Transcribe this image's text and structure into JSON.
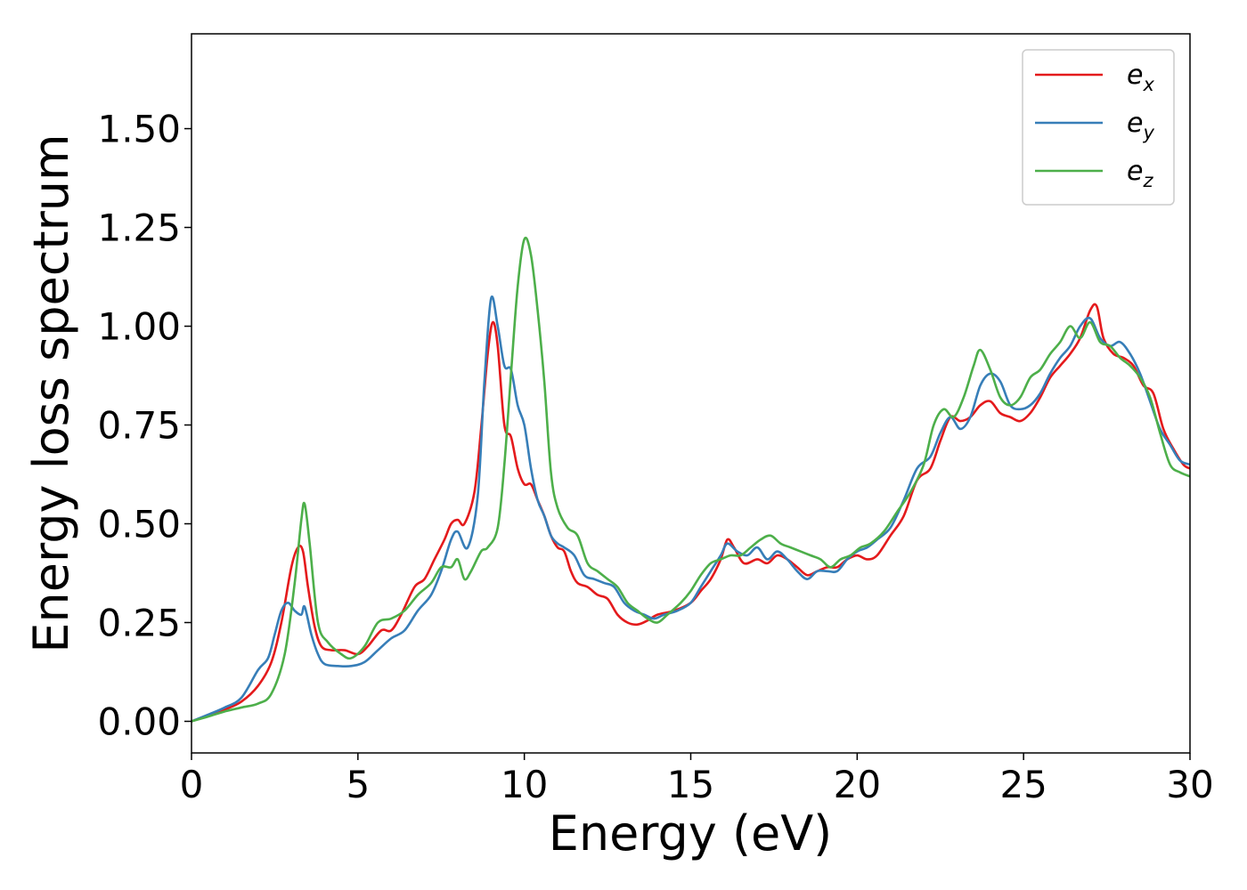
{
  "chart_data": {
    "type": "line",
    "title": "",
    "xlabel": "Energy (eV)",
    "ylabel": "Energy loss spectrum",
    "xlim": [
      0,
      30
    ],
    "ylim": [
      -0.08,
      1.74
    ],
    "x_ticks": [
      0,
      5,
      10,
      15,
      20,
      25,
      30
    ],
    "x_tick_labels": [
      "0",
      "5",
      "10",
      "15",
      "20",
      "25",
      "30"
    ],
    "y_ticks": [
      0.0,
      0.25,
      0.5,
      0.75,
      1.0,
      1.25,
      1.5
    ],
    "y_tick_labels": [
      "0.00",
      "0.25",
      "0.50",
      "0.75",
      "1.00",
      "1.25",
      "1.50"
    ],
    "grid": false,
    "legend_position": "top-right",
    "series": [
      {
        "name": "e_x",
        "legend_base": "e",
        "legend_sub": "x",
        "color": "#e41a1c",
        "points": [
          [
            0,
            0
          ],
          [
            0.5,
            0.015
          ],
          [
            1.0,
            0.03
          ],
          [
            1.5,
            0.05
          ],
          [
            2.0,
            0.09
          ],
          [
            2.4,
            0.15
          ],
          [
            2.7,
            0.25
          ],
          [
            3.0,
            0.39
          ],
          [
            3.2,
            0.44
          ],
          [
            3.35,
            0.43
          ],
          [
            3.5,
            0.34
          ],
          [
            3.7,
            0.24
          ],
          [
            3.9,
            0.19
          ],
          [
            4.2,
            0.18
          ],
          [
            4.6,
            0.18
          ],
          [
            5.0,
            0.17
          ],
          [
            5.3,
            0.19
          ],
          [
            5.7,
            0.23
          ],
          [
            6.0,
            0.23
          ],
          [
            6.3,
            0.27
          ],
          [
            6.7,
            0.34
          ],
          [
            7.0,
            0.36
          ],
          [
            7.3,
            0.41
          ],
          [
            7.6,
            0.46
          ],
          [
            7.8,
            0.5
          ],
          [
            8.0,
            0.51
          ],
          [
            8.2,
            0.5
          ],
          [
            8.5,
            0.58
          ],
          [
            8.7,
            0.74
          ],
          [
            8.9,
            0.93
          ],
          [
            9.05,
            1.01
          ],
          [
            9.2,
            0.95
          ],
          [
            9.4,
            0.75
          ],
          [
            9.6,
            0.72
          ],
          [
            9.8,
            0.64
          ],
          [
            10.0,
            0.6
          ],
          [
            10.2,
            0.6
          ],
          [
            10.4,
            0.56
          ],
          [
            10.6,
            0.52
          ],
          [
            10.8,
            0.47
          ],
          [
            11.0,
            0.44
          ],
          [
            11.2,
            0.43
          ],
          [
            11.4,
            0.38
          ],
          [
            11.6,
            0.35
          ],
          [
            11.9,
            0.34
          ],
          [
            12.2,
            0.32
          ],
          [
            12.5,
            0.31
          ],
          [
            12.8,
            0.27
          ],
          [
            13.1,
            0.25
          ],
          [
            13.4,
            0.245
          ],
          [
            13.7,
            0.255
          ],
          [
            14.0,
            0.27
          ],
          [
            14.5,
            0.28
          ],
          [
            15.0,
            0.3
          ],
          [
            15.3,
            0.33
          ],
          [
            15.6,
            0.36
          ],
          [
            15.9,
            0.41
          ],
          [
            16.1,
            0.46
          ],
          [
            16.3,
            0.44
          ],
          [
            16.6,
            0.4
          ],
          [
            17.0,
            0.41
          ],
          [
            17.3,
            0.4
          ],
          [
            17.6,
            0.42
          ],
          [
            17.9,
            0.41
          ],
          [
            18.2,
            0.39
          ],
          [
            18.5,
            0.37
          ],
          [
            18.8,
            0.38
          ],
          [
            19.1,
            0.39
          ],
          [
            19.4,
            0.39
          ],
          [
            19.7,
            0.41
          ],
          [
            20.0,
            0.42
          ],
          [
            20.3,
            0.41
          ],
          [
            20.6,
            0.42
          ],
          [
            21.0,
            0.47
          ],
          [
            21.4,
            0.52
          ],
          [
            21.8,
            0.61
          ],
          [
            22.2,
            0.64
          ],
          [
            22.5,
            0.71
          ],
          [
            22.8,
            0.77
          ],
          [
            23.1,
            0.76
          ],
          [
            23.4,
            0.77
          ],
          [
            23.7,
            0.8
          ],
          [
            24.0,
            0.81
          ],
          [
            24.3,
            0.78
          ],
          [
            24.6,
            0.77
          ],
          [
            24.9,
            0.76
          ],
          [
            25.2,
            0.78
          ],
          [
            25.5,
            0.82
          ],
          [
            25.8,
            0.87
          ],
          [
            26.1,
            0.9
          ],
          [
            26.4,
            0.93
          ],
          [
            26.7,
            0.97
          ],
          [
            27.0,
            1.04
          ],
          [
            27.2,
            1.05
          ],
          [
            27.4,
            0.97
          ],
          [
            27.7,
            0.93
          ],
          [
            28.0,
            0.92
          ],
          [
            28.3,
            0.9
          ],
          [
            28.6,
            0.85
          ],
          [
            28.9,
            0.83
          ],
          [
            29.2,
            0.74
          ],
          [
            29.5,
            0.69
          ],
          [
            29.8,
            0.65
          ],
          [
            30.0,
            0.64
          ]
        ]
      },
      {
        "name": "e_y",
        "legend_base": "e",
        "legend_sub": "y",
        "color": "#377eb8",
        "points": [
          [
            0,
            0
          ],
          [
            0.5,
            0.017
          ],
          [
            1.0,
            0.035
          ],
          [
            1.5,
            0.06
          ],
          [
            2.0,
            0.13
          ],
          [
            2.3,
            0.16
          ],
          [
            2.5,
            0.22
          ],
          [
            2.7,
            0.28
          ],
          [
            2.9,
            0.3
          ],
          [
            3.1,
            0.28
          ],
          [
            3.3,
            0.27
          ],
          [
            3.4,
            0.29
          ],
          [
            3.6,
            0.22
          ],
          [
            3.8,
            0.17
          ],
          [
            4.0,
            0.145
          ],
          [
            4.4,
            0.14
          ],
          [
            4.8,
            0.14
          ],
          [
            5.2,
            0.15
          ],
          [
            5.6,
            0.18
          ],
          [
            6.0,
            0.21
          ],
          [
            6.4,
            0.23
          ],
          [
            6.8,
            0.28
          ],
          [
            7.2,
            0.32
          ],
          [
            7.5,
            0.38
          ],
          [
            7.8,
            0.46
          ],
          [
            8.0,
            0.48
          ],
          [
            8.3,
            0.44
          ],
          [
            8.6,
            0.57
          ],
          [
            8.8,
            0.86
          ],
          [
            9.0,
            1.07
          ],
          [
            9.2,
            1.0
          ],
          [
            9.4,
            0.9
          ],
          [
            9.6,
            0.89
          ],
          [
            9.8,
            0.8
          ],
          [
            10.0,
            0.75
          ],
          [
            10.2,
            0.64
          ],
          [
            10.4,
            0.56
          ],
          [
            10.6,
            0.52
          ],
          [
            10.8,
            0.47
          ],
          [
            11.0,
            0.45
          ],
          [
            11.2,
            0.44
          ],
          [
            11.5,
            0.42
          ],
          [
            11.8,
            0.37
          ],
          [
            12.1,
            0.36
          ],
          [
            12.4,
            0.35
          ],
          [
            12.7,
            0.34
          ],
          [
            13.0,
            0.3
          ],
          [
            13.3,
            0.28
          ],
          [
            13.6,
            0.27
          ],
          [
            13.9,
            0.26
          ],
          [
            14.2,
            0.27
          ],
          [
            14.6,
            0.28
          ],
          [
            15.0,
            0.3
          ],
          [
            15.3,
            0.34
          ],
          [
            15.6,
            0.38
          ],
          [
            15.9,
            0.42
          ],
          [
            16.1,
            0.45
          ],
          [
            16.4,
            0.43
          ],
          [
            16.7,
            0.42
          ],
          [
            17.0,
            0.44
          ],
          [
            17.3,
            0.41
          ],
          [
            17.6,
            0.43
          ],
          [
            17.9,
            0.41
          ],
          [
            18.2,
            0.38
          ],
          [
            18.5,
            0.36
          ],
          [
            18.8,
            0.38
          ],
          [
            19.1,
            0.38
          ],
          [
            19.4,
            0.38
          ],
          [
            19.7,
            0.41
          ],
          [
            20.0,
            0.43
          ],
          [
            20.3,
            0.44
          ],
          [
            20.6,
            0.46
          ],
          [
            21.0,
            0.49
          ],
          [
            21.4,
            0.56
          ],
          [
            21.8,
            0.64
          ],
          [
            22.2,
            0.67
          ],
          [
            22.5,
            0.73
          ],
          [
            22.8,
            0.77
          ],
          [
            23.1,
            0.74
          ],
          [
            23.4,
            0.77
          ],
          [
            23.7,
            0.85
          ],
          [
            24.0,
            0.88
          ],
          [
            24.3,
            0.86
          ],
          [
            24.6,
            0.8
          ],
          [
            24.9,
            0.79
          ],
          [
            25.2,
            0.8
          ],
          [
            25.5,
            0.83
          ],
          [
            25.8,
            0.88
          ],
          [
            26.1,
            0.92
          ],
          [
            26.4,
            0.95
          ],
          [
            26.7,
            1.0
          ],
          [
            27.0,
            1.02
          ],
          [
            27.3,
            0.97
          ],
          [
            27.6,
            0.95
          ],
          [
            27.9,
            0.96
          ],
          [
            28.2,
            0.93
          ],
          [
            28.5,
            0.88
          ],
          [
            28.8,
            0.81
          ],
          [
            29.1,
            0.74
          ],
          [
            29.4,
            0.7
          ],
          [
            29.7,
            0.66
          ],
          [
            30.0,
            0.65
          ]
        ]
      },
      {
        "name": "e_z",
        "legend_base": "e",
        "legend_sub": "z",
        "color": "#4daf4a",
        "points": [
          [
            0,
            0
          ],
          [
            0.5,
            0.012
          ],
          [
            1.0,
            0.025
          ],
          [
            1.5,
            0.035
          ],
          [
            2.0,
            0.045
          ],
          [
            2.4,
            0.07
          ],
          [
            2.8,
            0.17
          ],
          [
            3.1,
            0.35
          ],
          [
            3.3,
            0.51
          ],
          [
            3.4,
            0.55
          ],
          [
            3.55,
            0.45
          ],
          [
            3.8,
            0.25
          ],
          [
            4.1,
            0.2
          ],
          [
            4.5,
            0.17
          ],
          [
            4.8,
            0.16
          ],
          [
            5.2,
            0.19
          ],
          [
            5.6,
            0.25
          ],
          [
            6.0,
            0.26
          ],
          [
            6.4,
            0.28
          ],
          [
            6.8,
            0.32
          ],
          [
            7.2,
            0.35
          ],
          [
            7.5,
            0.39
          ],
          [
            7.8,
            0.39
          ],
          [
            8.0,
            0.41
          ],
          [
            8.2,
            0.36
          ],
          [
            8.4,
            0.38
          ],
          [
            8.7,
            0.43
          ],
          [
            8.9,
            0.44
          ],
          [
            9.2,
            0.49
          ],
          [
            9.4,
            0.65
          ],
          [
            9.6,
            0.88
          ],
          [
            9.8,
            1.1
          ],
          [
            10.0,
            1.22
          ],
          [
            10.2,
            1.18
          ],
          [
            10.4,
            1.04
          ],
          [
            10.6,
            0.86
          ],
          [
            10.8,
            0.63
          ],
          [
            11.0,
            0.54
          ],
          [
            11.3,
            0.49
          ],
          [
            11.6,
            0.47
          ],
          [
            11.9,
            0.4
          ],
          [
            12.2,
            0.38
          ],
          [
            12.5,
            0.36
          ],
          [
            12.8,
            0.34
          ],
          [
            13.1,
            0.3
          ],
          [
            13.4,
            0.28
          ],
          [
            13.7,
            0.26
          ],
          [
            14.0,
            0.25
          ],
          [
            14.3,
            0.27
          ],
          [
            14.7,
            0.3
          ],
          [
            15.0,
            0.33
          ],
          [
            15.3,
            0.37
          ],
          [
            15.6,
            0.4
          ],
          [
            15.9,
            0.41
          ],
          [
            16.2,
            0.42
          ],
          [
            16.5,
            0.42
          ],
          [
            16.8,
            0.44
          ],
          [
            17.1,
            0.46
          ],
          [
            17.4,
            0.47
          ],
          [
            17.7,
            0.45
          ],
          [
            18.0,
            0.44
          ],
          [
            18.3,
            0.43
          ],
          [
            18.6,
            0.42
          ],
          [
            18.9,
            0.41
          ],
          [
            19.2,
            0.39
          ],
          [
            19.5,
            0.41
          ],
          [
            19.8,
            0.42
          ],
          [
            20.1,
            0.44
          ],
          [
            20.4,
            0.45
          ],
          [
            20.8,
            0.48
          ],
          [
            21.2,
            0.53
          ],
          [
            21.6,
            0.58
          ],
          [
            22.0,
            0.65
          ],
          [
            22.3,
            0.75
          ],
          [
            22.6,
            0.79
          ],
          [
            22.9,
            0.77
          ],
          [
            23.2,
            0.82
          ],
          [
            23.5,
            0.9
          ],
          [
            23.7,
            0.94
          ],
          [
            24.0,
            0.89
          ],
          [
            24.3,
            0.82
          ],
          [
            24.6,
            0.8
          ],
          [
            24.9,
            0.82
          ],
          [
            25.2,
            0.87
          ],
          [
            25.5,
            0.89
          ],
          [
            25.8,
            0.93
          ],
          [
            26.1,
            0.96
          ],
          [
            26.4,
            1.0
          ],
          [
            26.7,
            0.97
          ],
          [
            27.0,
            1.01
          ],
          [
            27.3,
            0.96
          ],
          [
            27.6,
            0.95
          ],
          [
            27.9,
            0.92
          ],
          [
            28.2,
            0.9
          ],
          [
            28.5,
            0.87
          ],
          [
            28.8,
            0.82
          ],
          [
            29.1,
            0.73
          ],
          [
            29.4,
            0.65
          ],
          [
            29.7,
            0.63
          ],
          [
            30.0,
            0.62
          ]
        ]
      }
    ]
  }
}
